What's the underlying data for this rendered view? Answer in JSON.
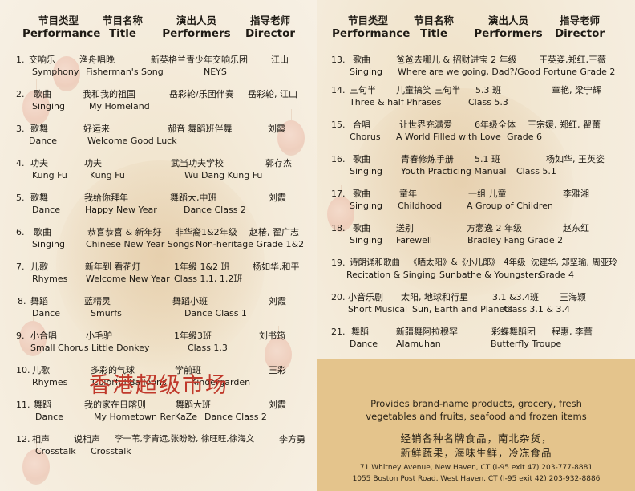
{
  "header": {
    "type_zh": "节目类型",
    "type_en": "Performance",
    "name_zh": "节目名称",
    "name_en": "Title",
    "performer_zh": "演出人员",
    "performer_en": "Performers",
    "director_zh": "指导老师",
    "director_en": "Director"
  },
  "programs": [
    {
      "num": "1.",
      "type_zh": "交响乐",
      "type_en": "Symphony",
      "title_zh": "渔舟唱晚",
      "title_en": "Fisherman's Song",
      "performers_zh": "新英格兰青少年交响乐团",
      "performers_en": "NEYS",
      "director": "江山"
    },
    {
      "num": "2.",
      "type_zh": "歌曲",
      "type_en": "Singing",
      "title_zh": "我和我的祖国",
      "title_en": "My Homeland",
      "performers_zh": "岳彩轮/乐团伴奏",
      "performers_en": "",
      "director": "岳彩轮, 江山"
    },
    {
      "num": "3.",
      "type_zh": "歌舞",
      "type_en": "Dance",
      "title_zh": "好运来",
      "title_en": "Welcome Good Luck",
      "performers_zh": "郝音 舞蹈班伴舞",
      "performers_en": "",
      "director": "刘霞"
    },
    {
      "num": "4.",
      "type_zh": "功夫",
      "type_en": "Kung Fu",
      "title_zh": "功夫",
      "title_en": "Kung Fu",
      "performers_zh": "武当功夫学校",
      "performers_en": "Wu Dang  Kung Fu",
      "director": "郭存杰"
    },
    {
      "num": "5.",
      "type_zh": "歌舞",
      "type_en": "Dance",
      "title_zh": "我给你拜年",
      "title_en": "Happy New Year",
      "performers_zh": "舞蹈大,中班",
      "performers_en": "Dance Class 2",
      "director": "刘霞"
    },
    {
      "num": "6.",
      "type_zh": "歌曲",
      "type_en": "Singing",
      "title_zh": "恭喜恭喜 & 新年好",
      "title_en": "Chinese New Year Songs",
      "performers_zh": "非华裔1&2年级",
      "performers_en": "Non-heritage Grade 1&2",
      "director": "赵椿, 翟广志"
    },
    {
      "num": "7.",
      "type_zh": "儿歌",
      "type_en": "Rhymes",
      "title_zh": "新年到 看花灯",
      "title_en": "Welcome New Year",
      "performers_zh": "1年级 1&2 班",
      "performers_en": "Class 1.1, 1.2班",
      "director": "杨如华,和平"
    },
    {
      "num": "8.",
      "type_zh": "舞蹈",
      "type_en": "Dance",
      "title_zh": "蓝精灵",
      "title_en": "Smurfs",
      "performers_zh": "舞蹈小班",
      "performers_en": "Dance Class 1",
      "director": "刘霞"
    },
    {
      "num": "9.",
      "type_zh": "小合唱",
      "type_en": "Small Chorus",
      "title_zh": "小毛驴",
      "title_en": "Little Donkey",
      "performers_zh": "1年级3班",
      "performers_en": "Class 1.3",
      "director": "刘书筠"
    },
    {
      "num": "10.",
      "type_zh": "儿歌",
      "type_en": "Rhymes",
      "title_zh": "多彩的气球",
      "title_en": "Colorful Balloons",
      "performers_zh": "学前班",
      "performers_en": "Kindergarden",
      "director": "王彩"
    },
    {
      "num": "11.",
      "type_zh": "舞蹈",
      "type_en": "Dance",
      "title_zh": "我的家在日喀则",
      "title_en": "My Hometown RerKaZe",
      "performers_zh": "舞蹈大班",
      "performers_en": "Dance Class  2",
      "director": "刘霞"
    },
    {
      "num": "12.",
      "type_zh": "相声",
      "type_en": "Crosstalk",
      "title_zh": "说相声",
      "title_en": "Crosstalk",
      "performers_zh": "李一苇,李青远,张盼盼, 徐旺旺,徐海文",
      "performers_en": "",
      "director": "李方勇"
    },
    {
      "num": "13.",
      "type_zh": "歌曲",
      "type_en": "Singing",
      "title_zh": "爸爸去哪儿 &  招财进宝  2 年级",
      "title_en": "Where are  we going, Dad?/Good Fortune  Grade 2",
      "performers_zh": "",
      "performers_en": "",
      "director": "王英姿,郑红,王薇"
    },
    {
      "num": "14.",
      "type_zh": "三句半",
      "type_en": "Three & half Phrases",
      "title_zh": "儿童搞笑 三句半",
      "title_en": "",
      "performers_zh": "5.3 班",
      "performers_en": "Class 5.3",
      "director": "章艳, 梁宁辉"
    },
    {
      "num": "15.",
      "type_zh": "合唱",
      "type_en": "Chorus",
      "title_zh": "让世界充满爱",
      "title_en": "A World Filled with Love",
      "performers_zh": "6年级全体",
      "performers_en": "Grade  6",
      "director": "王宗媛, 郑红, 翟蕾"
    },
    {
      "num": "16.",
      "type_zh": "歌曲",
      "type_en": "Singing",
      "title_zh": "青春修炼手册",
      "title_en": "Youth Practicing Manual",
      "performers_zh": "5.1 班",
      "performers_en": "Class 5.1",
      "director": "杨如华, 王英姿"
    },
    {
      "num": "17.",
      "type_zh": "歌曲",
      "type_en": "Singing",
      "title_zh": "童年",
      "title_en": "Childhood",
      "performers_zh": "一组 儿童",
      "performers_en": "A Group of Children",
      "director": "李雅湘"
    },
    {
      "num": "18.",
      "type_zh": "歌曲",
      "type_en": "Singing",
      "title_zh": "送别",
      "title_en": "Farewell",
      "performers_zh": "方悫逸  2  年级",
      "performers_en": "Bradley Fang   Grade 2",
      "director": "赵东红"
    },
    {
      "num": "19.",
      "type_zh": "诗朗诵和歌曲",
      "type_en": "Recitation & Singing",
      "title_zh": "《晒太阳》&《小儿郎》",
      "title_en": "Sunbathe & Youngsters",
      "performers_zh": "4年级",
      "performers_en": "Grade 4",
      "director": "沈建华, 郑坚瑜, 周亚玲"
    },
    {
      "num": "20.",
      "type_zh": "小音乐剧",
      "type_en": "Short Musical",
      "title_zh": "太阳,  地球和行星",
      "title_en": "Sun, Earth and Planets",
      "performers_zh": "3.1 &3.4班",
      "performers_en": "Class 3.1 & 3.4",
      "director": "王海颖"
    },
    {
      "num": "21.",
      "type_zh": "舞蹈",
      "type_en": "Dance",
      "title_zh": "新疆舞阿拉穆罕",
      "title_en": "Alamuhan",
      "performers_zh": "彩蝶舞蹈团",
      "performers_en": "Butterfly Troupe",
      "director": "程惠, 李蕾"
    }
  ],
  "ad": {
    "title": "香港超级市场",
    "en_line1": "Provides brand-name products, grocery, fresh",
    "en_line2": "vegetables and fruits, seafood and frozen items",
    "zh_line1": "经销各种名牌食品，南北杂货，",
    "zh_line2": "新鲜蔬果，海味生鲜，冷冻食品",
    "address1": "71 Whitney Avenue, New Haven, CT (I-95 exit 47) 203-777-8881",
    "address2": "1055 Boston Post Road, West Haven, CT (I-95 exit 42) 203-932-8886"
  }
}
